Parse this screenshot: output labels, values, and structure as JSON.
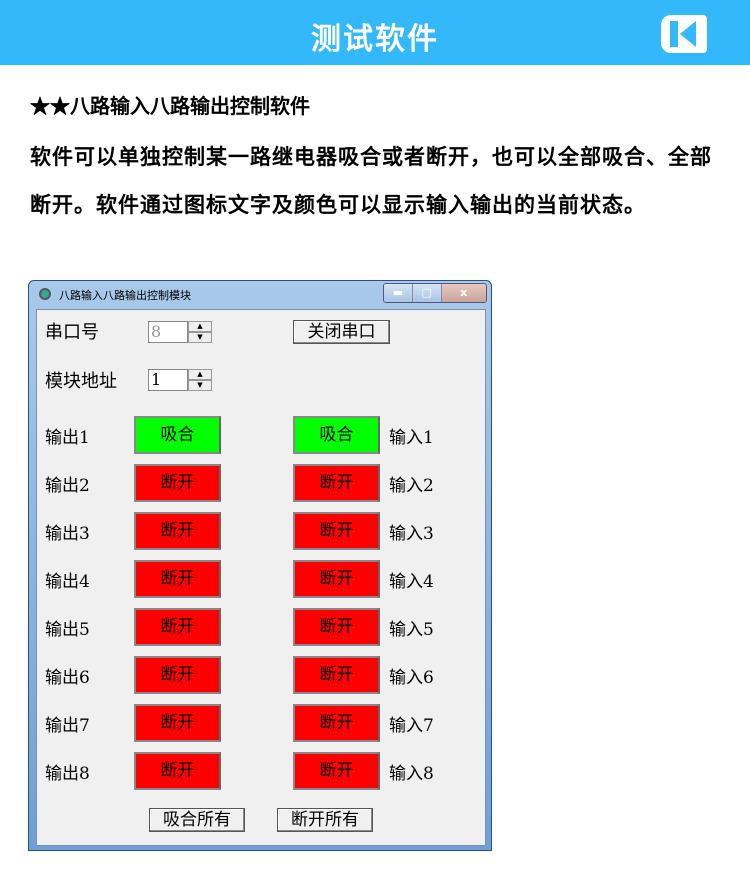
{
  "header": {
    "title": "测试软件",
    "logo_icon": "k-logo-icon",
    "color": "#33b8fb"
  },
  "subtitle": "★★八路输入八路输出控制软件",
  "paragraph": "软件可以单独控制某一路继电器吸合或者断开，也可以全部吸合、全部断开。软件通过图标文字及颜色可以显示输入输出的当前状态。",
  "window": {
    "title": "八路输入八路输出控制模块",
    "controls": {
      "minimize": "▬",
      "maximize": "□",
      "close": "x"
    },
    "port_label": "串口号",
    "port_value": "8",
    "addr_label": "模块地址",
    "addr_value": "1",
    "close_port_button": "关闭串口",
    "outputs": [
      {
        "label": "输出1",
        "state": "吸合",
        "color": "#00ff00"
      },
      {
        "label": "输出2",
        "state": "断开",
        "color": "#ff0000"
      },
      {
        "label": "输出3",
        "state": "断开",
        "color": "#ff0000"
      },
      {
        "label": "输出4",
        "state": "断开",
        "color": "#ff0000"
      },
      {
        "label": "输出5",
        "state": "断开",
        "color": "#ff0000"
      },
      {
        "label": "输出6",
        "state": "断开",
        "color": "#ff0000"
      },
      {
        "label": "输出7",
        "state": "断开",
        "color": "#ff0000"
      },
      {
        "label": "输出8",
        "state": "断开",
        "color": "#ff0000"
      }
    ],
    "inputs": [
      {
        "label": "输入1",
        "state": "吸合",
        "color": "#00ff00"
      },
      {
        "label": "输入2",
        "state": "断开",
        "color": "#ff0000"
      },
      {
        "label": "输入3",
        "state": "断开",
        "color": "#ff0000"
      },
      {
        "label": "输入4",
        "state": "断开",
        "color": "#ff0000"
      },
      {
        "label": "输入5",
        "state": "断开",
        "color": "#ff0000"
      },
      {
        "label": "输入6",
        "state": "断开",
        "color": "#ff0000"
      },
      {
        "label": "输入7",
        "state": "断开",
        "color": "#ff0000"
      },
      {
        "label": "输入8",
        "state": "断开",
        "color": "#ff0000"
      }
    ],
    "all_on_button": "吸合所有",
    "all_off_button": "断开所有"
  }
}
